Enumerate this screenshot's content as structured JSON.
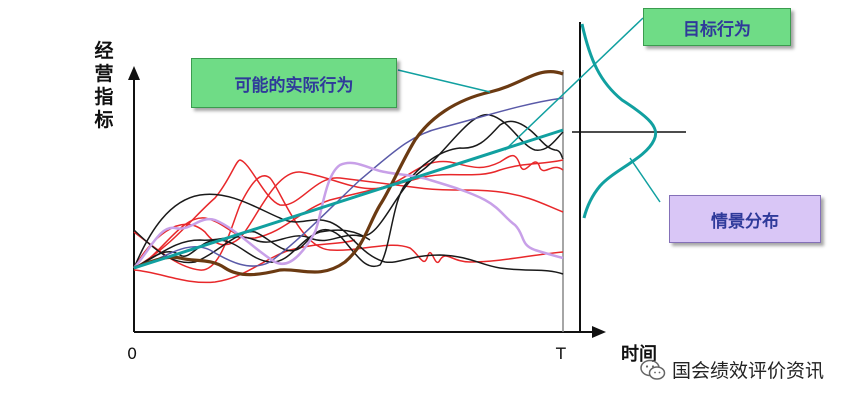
{
  "axes": {
    "y_label": "经营指标",
    "x_label": "时间",
    "x_start": "0",
    "x_end": "T"
  },
  "callouts": {
    "possible": "可能的实际行为",
    "target": "目标行为",
    "scenario": "情景分布"
  },
  "watermark": "国会绩效评价资讯",
  "colors": {
    "red": "#e8282b",
    "black": "#1a1a1a",
    "blue": "#5a5aa8",
    "lavender": "#c8a0e8",
    "brown": "#6b3a12",
    "teal": "#11a0a0",
    "callout_green": "#6fdc86",
    "callout_purple": "#d9c6f6",
    "callout_text": "#2f3a9a"
  }
}
